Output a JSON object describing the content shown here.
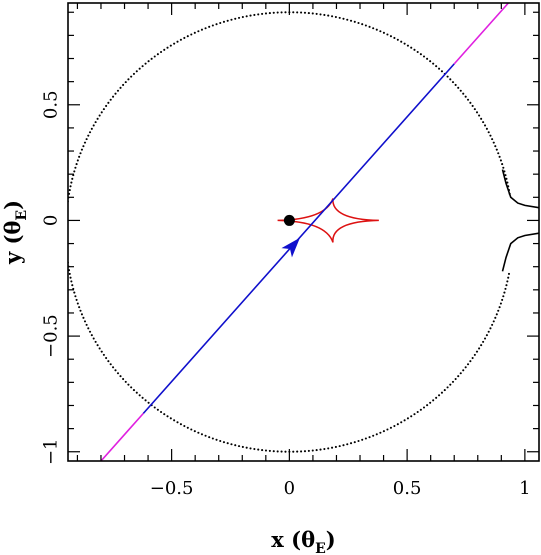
{
  "chart_data": {
    "type": "line",
    "title": "",
    "xlabel": "x",
    "xlabel_unit_symbol": "θ",
    "xlabel_unit_sub": "E",
    "ylabel": "y",
    "ylabel_unit_symbol": "θ",
    "ylabel_unit_sub": "E",
    "xlim": [
      -0.94,
      1.06
    ],
    "ylim": [
      -1.04,
      0.94
    ],
    "x_ticks": [
      {
        "value": -0.5,
        "label": "−0.5"
      },
      {
        "value": 0,
        "label": "0"
      },
      {
        "value": 0.5,
        "label": "0.5"
      },
      {
        "value": 1,
        "label": "1"
      }
    ],
    "y_ticks": [
      {
        "value": -1,
        "label": "−1"
      },
      {
        "value": -0.5,
        "label": "−0.5"
      },
      {
        "value": 0,
        "label": "0"
      },
      {
        "value": 0.5,
        "label": "0.5"
      }
    ],
    "minor_tick_step": 0.1,
    "grid": false,
    "series": [
      {
        "kind": "dotted-curve",
        "color": "#000000",
        "description_key": "critical curve (Einstein ring)",
        "center": [
          0,
          -0.05
        ],
        "radius": 0.95,
        "gap_angle_deg": [
          -10,
          10
        ]
      },
      {
        "kind": "solid-curve",
        "color": "#000000",
        "points_upper": [
          [
            0.905,
            0.22
          ],
          [
            0.92,
            0.16
          ],
          [
            0.94,
            0.1
          ],
          [
            0.97,
            0.075
          ],
          [
            1.0,
            0.065
          ],
          [
            1.06,
            0.055
          ]
        ],
        "points_lower": [
          [
            0.905,
            -0.22
          ],
          [
            0.92,
            -0.16
          ],
          [
            0.94,
            -0.1
          ],
          [
            0.97,
            -0.075
          ],
          [
            1.0,
            -0.065
          ],
          [
            1.06,
            -0.055
          ]
        ]
      },
      {
        "kind": "caustic",
        "color": "#dd1111",
        "cusps": [
          [
            -0.05,
            0.0
          ],
          [
            0.185,
            0.095
          ],
          [
            0.38,
            0.0
          ],
          [
            0.185,
            -0.095
          ]
        ]
      },
      {
        "kind": "trajectory",
        "color_outer": "#e020e0",
        "color_inner": "#1010cc",
        "p0": [
          -0.8,
          -1.04
        ],
        "p1": [
          0.93,
          0.94
        ],
        "inner_x_range": [
          -0.62,
          0.7
        ]
      },
      {
        "kind": "lens-point",
        "color": "#000000",
        "x": 0.0,
        "y": 0.0
      },
      {
        "kind": "arrow",
        "color": "#1010cc",
        "tip": [
          0.045,
          -0.075
        ],
        "direction": [
          0.87,
          1.0
        ]
      }
    ]
  }
}
